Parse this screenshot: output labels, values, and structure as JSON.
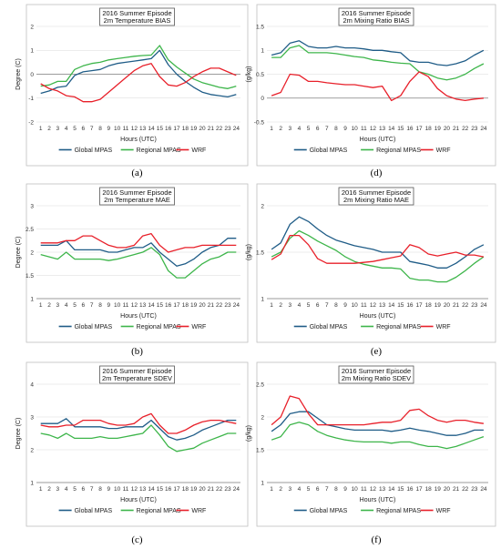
{
  "panel_labels": [
    "(a)",
    "(b)",
    "(c)",
    "(d)",
    "(e)",
    "(f)"
  ],
  "chart_data": [
    {
      "id": "a",
      "type": "line",
      "title_line1": "2016 Summer Episode",
      "title_line2": "2m Temperature BIAS",
      "xlabel": "Hours (UTC)",
      "ylabel": "Degree (C)",
      "ylim": [
        -2,
        2
      ],
      "yticks": [
        -2,
        -1,
        0,
        1,
        2
      ],
      "grid": true,
      "legend_position": "bottom",
      "x": [
        1,
        2,
        3,
        4,
        5,
        6,
        7,
        8,
        9,
        10,
        11,
        12,
        13,
        14,
        15,
        16,
        17,
        18,
        19,
        20,
        21,
        22,
        23,
        24
      ],
      "series": [
        {
          "name": "Global MPAS",
          "color": "#1f5c87",
          "values": [
            -0.8,
            -0.7,
            -0.55,
            -0.5,
            -0.05,
            0.1,
            0.15,
            0.2,
            0.35,
            0.45,
            0.5,
            0.55,
            0.6,
            0.65,
            1.0,
            0.4,
            0.0,
            -0.3,
            -0.55,
            -0.75,
            -0.85,
            -0.9,
            -0.95,
            -0.85
          ]
        },
        {
          "name": "Regional MPAS",
          "color": "#3db54a",
          "values": [
            -0.5,
            -0.45,
            -0.3,
            -0.3,
            0.2,
            0.35,
            0.45,
            0.5,
            0.6,
            0.65,
            0.7,
            0.75,
            0.78,
            0.8,
            1.2,
            0.6,
            0.3,
            0.05,
            -0.2,
            -0.35,
            -0.45,
            -0.55,
            -0.6,
            -0.5
          ]
        },
        {
          "name": "WRF",
          "color": "#e8202a",
          "values": [
            -0.4,
            -0.6,
            -0.7,
            -0.9,
            -0.95,
            -1.15,
            -1.15,
            -1.05,
            -0.75,
            -0.45,
            -0.15,
            0.15,
            0.35,
            0.45,
            -0.1,
            -0.45,
            -0.5,
            -0.35,
            -0.1,
            0.1,
            0.25,
            0.25,
            0.1,
            -0.05
          ]
        }
      ]
    },
    {
      "id": "b",
      "type": "line",
      "title_line1": "2016 Summer Episode",
      "title_line2": "2m Temperature MAE",
      "xlabel": "Hours (UTC)",
      "ylabel": "Degree (C)",
      "ylim": [
        1,
        3
      ],
      "yticks": [
        1,
        1.5,
        2,
        2.5,
        3
      ],
      "grid": true,
      "legend_position": "bottom",
      "x": [
        1,
        2,
        3,
        4,
        5,
        6,
        7,
        8,
        9,
        10,
        11,
        12,
        13,
        14,
        15,
        16,
        17,
        18,
        19,
        20,
        21,
        22,
        23,
        24
      ],
      "series": [
        {
          "name": "Global MPAS",
          "color": "#1f5c87",
          "values": [
            2.15,
            2.15,
            2.15,
            2.25,
            2.05,
            2.05,
            2.05,
            2.05,
            2.0,
            2.0,
            2.05,
            2.1,
            2.1,
            2.2,
            2.0,
            1.85,
            1.7,
            1.75,
            1.85,
            2.0,
            2.1,
            2.15,
            2.3,
            2.3
          ]
        },
        {
          "name": "Regional MPAS",
          "color": "#3db54a",
          "values": [
            1.95,
            1.9,
            1.85,
            2.0,
            1.85,
            1.85,
            1.85,
            1.85,
            1.82,
            1.85,
            1.9,
            1.95,
            2.0,
            2.1,
            1.95,
            1.6,
            1.45,
            1.45,
            1.6,
            1.75,
            1.85,
            1.9,
            2.0,
            2.0
          ]
        },
        {
          "name": "WRF",
          "color": "#e8202a",
          "values": [
            2.2,
            2.2,
            2.2,
            2.25,
            2.25,
            2.35,
            2.35,
            2.25,
            2.15,
            2.1,
            2.1,
            2.15,
            2.35,
            2.4,
            2.15,
            2.0,
            2.05,
            2.1,
            2.1,
            2.15,
            2.15,
            2.15,
            2.15,
            2.15
          ]
        }
      ]
    },
    {
      "id": "c",
      "type": "line",
      "title_line1": "2016 Summer Episode",
      "title_line2": "2m Temperature SDEV",
      "xlabel": "Hours (UTC)",
      "ylabel": "Degree (C)",
      "ylim": [
        1,
        4
      ],
      "yticks": [
        1,
        2,
        3,
        4
      ],
      "grid": true,
      "legend_position": "bottom",
      "x": [
        1,
        2,
        3,
        4,
        5,
        6,
        7,
        8,
        9,
        10,
        11,
        12,
        13,
        14,
        15,
        16,
        17,
        18,
        19,
        20,
        21,
        22,
        23,
        24
      ],
      "series": [
        {
          "name": "Global MPAS",
          "color": "#1f5c87",
          "values": [
            2.8,
            2.8,
            2.8,
            2.95,
            2.7,
            2.7,
            2.7,
            2.7,
            2.65,
            2.65,
            2.7,
            2.7,
            2.7,
            2.9,
            2.65,
            2.4,
            2.3,
            2.35,
            2.45,
            2.6,
            2.7,
            2.8,
            2.9,
            2.9
          ]
        },
        {
          "name": "Regional MPAS",
          "color": "#3db54a",
          "values": [
            2.5,
            2.45,
            2.35,
            2.5,
            2.35,
            2.35,
            2.35,
            2.4,
            2.35,
            2.35,
            2.4,
            2.45,
            2.5,
            2.75,
            2.45,
            2.1,
            1.95,
            2.0,
            2.05,
            2.2,
            2.3,
            2.4,
            2.5,
            2.5
          ]
        },
        {
          "name": "WRF",
          "color": "#e8202a",
          "values": [
            2.75,
            2.7,
            2.7,
            2.75,
            2.75,
            2.9,
            2.9,
            2.9,
            2.8,
            2.75,
            2.75,
            2.8,
            3.0,
            3.1,
            2.75,
            2.5,
            2.5,
            2.6,
            2.75,
            2.85,
            2.9,
            2.9,
            2.85,
            2.8
          ]
        }
      ]
    },
    {
      "id": "d",
      "type": "line",
      "title_line1": "2016 Summer Episode",
      "title_line2": "2m Mixing Ratio BIAS",
      "xlabel": "Hours (UTC)",
      "ylabel": "(g/kg)",
      "ylim": [
        -0.5,
        1.5
      ],
      "yticks": [
        -0.5,
        0,
        0.5,
        1,
        1.5
      ],
      "grid": true,
      "legend_position": "bottom",
      "x": [
        1,
        2,
        3,
        4,
        5,
        6,
        7,
        8,
        9,
        10,
        11,
        12,
        13,
        14,
        15,
        16,
        17,
        18,
        19,
        20,
        21,
        22,
        23,
        24
      ],
      "series": [
        {
          "name": "Global MPAS",
          "color": "#1f5c87",
          "values": [
            0.9,
            0.95,
            1.15,
            1.2,
            1.08,
            1.05,
            1.05,
            1.08,
            1.05,
            1.05,
            1.03,
            1.0,
            1.0,
            0.97,
            0.95,
            0.78,
            0.75,
            0.75,
            0.7,
            0.68,
            0.72,
            0.78,
            0.9,
            1.0
          ]
        },
        {
          "name": "Regional MPAS",
          "color": "#3db54a",
          "values": [
            0.85,
            0.85,
            1.05,
            1.1,
            0.95,
            0.95,
            0.95,
            0.93,
            0.9,
            0.87,
            0.85,
            0.8,
            0.78,
            0.75,
            0.73,
            0.72,
            0.55,
            0.5,
            0.42,
            0.38,
            0.42,
            0.5,
            0.62,
            0.72
          ]
        },
        {
          "name": "WRF",
          "color": "#e8202a",
          "values": [
            0.05,
            0.12,
            0.5,
            0.48,
            0.35,
            0.35,
            0.32,
            0.3,
            0.28,
            0.28,
            0.25,
            0.22,
            0.25,
            -0.05,
            0.05,
            0.35,
            0.55,
            0.45,
            0.2,
            0.05,
            -0.02,
            -0.05,
            -0.02,
            0.0
          ]
        }
      ]
    },
    {
      "id": "e",
      "type": "line",
      "title_line1": "2016 Summer Episode",
      "title_line2": "2m Mixing Ratio MAE",
      "xlabel": "Hours (UTC)",
      "ylabel": "(g/kg)",
      "ylim": [
        1,
        2
      ],
      "yticks": [
        1,
        1.5,
        2
      ],
      "grid": true,
      "legend_position": "bottom",
      "x": [
        1,
        2,
        3,
        4,
        5,
        6,
        7,
        8,
        9,
        10,
        11,
        12,
        13,
        14,
        15,
        16,
        17,
        18,
        19,
        20,
        21,
        22,
        23,
        24
      ],
      "series": [
        {
          "name": "Global MPAS",
          "color": "#1f5c87",
          "values": [
            1.53,
            1.6,
            1.8,
            1.88,
            1.83,
            1.75,
            1.68,
            1.63,
            1.6,
            1.57,
            1.55,
            1.53,
            1.5,
            1.5,
            1.5,
            1.4,
            1.38,
            1.36,
            1.33,
            1.33,
            1.38,
            1.45,
            1.53,
            1.58
          ]
        },
        {
          "name": "Regional MPAS",
          "color": "#3db54a",
          "values": [
            1.45,
            1.5,
            1.65,
            1.73,
            1.68,
            1.62,
            1.57,
            1.52,
            1.45,
            1.4,
            1.37,
            1.35,
            1.33,
            1.33,
            1.32,
            1.22,
            1.2,
            1.2,
            1.18,
            1.18,
            1.23,
            1.3,
            1.38,
            1.45
          ]
        },
        {
          "name": "WRF",
          "color": "#e8202a",
          "values": [
            1.42,
            1.48,
            1.68,
            1.68,
            1.58,
            1.43,
            1.38,
            1.38,
            1.38,
            1.38,
            1.39,
            1.4,
            1.42,
            1.44,
            1.46,
            1.58,
            1.55,
            1.48,
            1.46,
            1.48,
            1.5,
            1.47,
            1.47,
            1.45
          ]
        }
      ]
    },
    {
      "id": "f",
      "type": "line",
      "title_line1": "2016 Summer Episode",
      "title_line2": "2m Mixing Ratio SDEV",
      "xlabel": "Hours (UTC)",
      "ylabel": "(g/kg)",
      "ylim": [
        1,
        2.5
      ],
      "yticks": [
        1,
        1.5,
        2,
        2.5
      ],
      "grid": true,
      "legend_position": "bottom",
      "x": [
        1,
        2,
        3,
        4,
        5,
        6,
        7,
        8,
        9,
        10,
        11,
        12,
        13,
        14,
        15,
        16,
        17,
        18,
        19,
        20,
        21,
        22,
        23,
        24
      ],
      "series": [
        {
          "name": "Global MPAS",
          "color": "#1f5c87",
          "values": [
            1.78,
            1.88,
            2.05,
            2.08,
            2.08,
            1.98,
            1.88,
            1.85,
            1.82,
            1.8,
            1.8,
            1.8,
            1.8,
            1.78,
            1.8,
            1.83,
            1.8,
            1.78,
            1.75,
            1.72,
            1.72,
            1.75,
            1.8,
            1.8
          ]
        },
        {
          "name": "Regional MPAS",
          "color": "#3db54a",
          "values": [
            1.65,
            1.7,
            1.88,
            1.92,
            1.88,
            1.78,
            1.72,
            1.68,
            1.65,
            1.63,
            1.62,
            1.62,
            1.62,
            1.6,
            1.62,
            1.62,
            1.58,
            1.55,
            1.55,
            1.52,
            1.55,
            1.6,
            1.65,
            1.7
          ]
        },
        {
          "name": "WRF",
          "color": "#e8202a",
          "values": [
            1.88,
            2.0,
            2.32,
            2.28,
            2.05,
            1.88,
            1.88,
            1.88,
            1.88,
            1.88,
            1.88,
            1.9,
            1.92,
            1.92,
            1.95,
            2.1,
            2.12,
            2.02,
            1.95,
            1.92,
            1.95,
            1.95,
            1.92,
            1.9
          ]
        }
      ]
    }
  ]
}
